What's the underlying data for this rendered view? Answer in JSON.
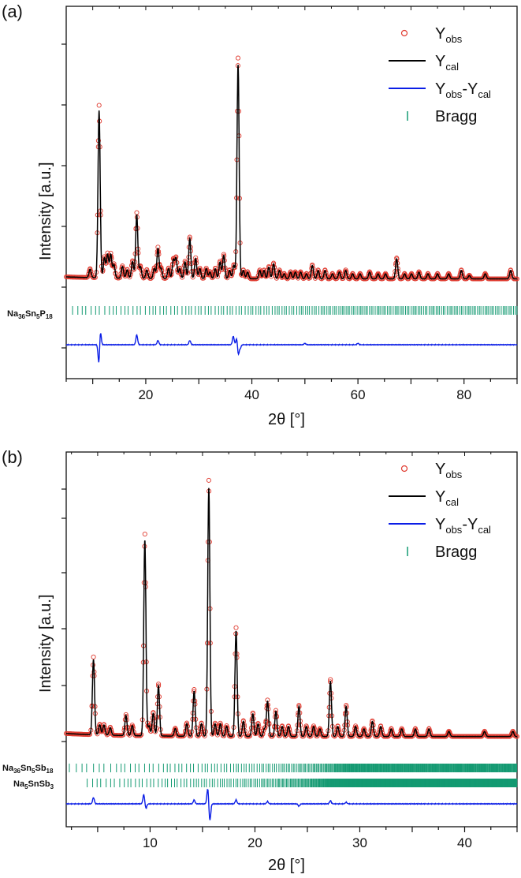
{
  "colors": {
    "obs": "#e03a2f",
    "cal": "#000000",
    "diff": "#0b1ee6",
    "bragg": "#149a72",
    "axis": "#111111"
  },
  "legend": {
    "obs_main": "Y",
    "obs_sub": "obs",
    "cal_main": "Y",
    "cal_sub": "cal",
    "diff_main1": "Y",
    "diff_sub1": "obs",
    "diff_dash": "-",
    "diff_main2": "Y",
    "diff_sub2": "cal",
    "bragg": "Bragg"
  },
  "chart_data": [
    {
      "type": "line",
      "panel_label": "(a)",
      "xlabel": "2θ [°]",
      "ylabel": "Intensity [a.u.]",
      "xlim": [
        5,
        90
      ],
      "xticks": [
        20,
        40,
        60,
        80
      ],
      "y_ticks_labeled": false,
      "legend_position": "top-right",
      "series": [
        {
          "name": "Yobs",
          "marker": "open-circle",
          "color": "#e03a2f"
        },
        {
          "name": "Ycal",
          "marker": "line",
          "color": "#000000"
        },
        {
          "name": "Yobs-Ycal",
          "marker": "line",
          "color": "#0b1ee6"
        },
        {
          "name": "Bragg",
          "marker": "tick",
          "color": "#149a72"
        }
      ],
      "background_level": 0.04,
      "peaks": [
        [
          9.5,
          0.05
        ],
        [
          11.2,
          1.0
        ],
        [
          12.2,
          0.12
        ],
        [
          12.8,
          0.14
        ],
        [
          13.4,
          0.14
        ],
        [
          14.0,
          0.08
        ],
        [
          15.6,
          0.07
        ],
        [
          16.5,
          0.05
        ],
        [
          17.5,
          0.1
        ],
        [
          18.3,
          0.38
        ],
        [
          19.0,
          0.07
        ],
        [
          20.2,
          0.05
        ],
        [
          21.6,
          0.06
        ],
        [
          22.3,
          0.18
        ],
        [
          22.9,
          0.06
        ],
        [
          24.3,
          0.06
        ],
        [
          25.2,
          0.11
        ],
        [
          25.7,
          0.12
        ],
        [
          26.4,
          0.06
        ],
        [
          27.4,
          0.1
        ],
        [
          28.3,
          0.24
        ],
        [
          29.4,
          0.12
        ],
        [
          30.2,
          0.06
        ],
        [
          31.4,
          0.06
        ],
        [
          32.1,
          0.04
        ],
        [
          33.1,
          0.06
        ],
        [
          34.0,
          0.1
        ],
        [
          34.7,
          0.14
        ],
        [
          35.8,
          0.05
        ],
        [
          36.6,
          0.08
        ],
        [
          37.4,
          1.28
        ],
        [
          38.4,
          0.05
        ],
        [
          39.2,
          0.04
        ],
        [
          41.5,
          0.05
        ],
        [
          42.3,
          0.05
        ],
        [
          43.2,
          0.07
        ],
        [
          44.1,
          0.09
        ],
        [
          45.2,
          0.05
        ],
        [
          46.1,
          0.03
        ],
        [
          47.3,
          0.04
        ],
        [
          48.2,
          0.04
        ],
        [
          49.2,
          0.04
        ],
        [
          50.3,
          0.03
        ],
        [
          51.4,
          0.08
        ],
        [
          52.5,
          0.05
        ],
        [
          53.8,
          0.05
        ],
        [
          55.2,
          0.03
        ],
        [
          56.5,
          0.04
        ],
        [
          57.7,
          0.05
        ],
        [
          59.0,
          0.03
        ],
        [
          60.4,
          0.03
        ],
        [
          62.2,
          0.04
        ],
        [
          63.8,
          0.03
        ],
        [
          65.2,
          0.03
        ],
        [
          67.3,
          0.12
        ],
        [
          68.8,
          0.03
        ],
        [
          70.1,
          0.03
        ],
        [
          71.5,
          0.04
        ],
        [
          73.2,
          0.03
        ],
        [
          75.0,
          0.03
        ],
        [
          77.1,
          0.03
        ],
        [
          79.5,
          0.05
        ],
        [
          81.0,
          0.02
        ],
        [
          84.0,
          0.03
        ],
        [
          88.8,
          0.05
        ]
      ],
      "phases": [
        {
          "label_main": "Na",
          "label_sub1": "36",
          "label_mid": "Sn",
          "label_sub2": "5",
          "label_mid2": "P",
          "label_sub3": "18",
          "reflection_start": 6.2,
          "reflection_step_min": 0.35,
          "reflection_step_max": 0.9
        }
      ],
      "difference_spikes": [
        [
          11.2,
          -0.35
        ],
        [
          11.4,
          0.28
        ],
        [
          18.3,
          0.14
        ],
        [
          22.3,
          0.06
        ],
        [
          28.3,
          0.06
        ],
        [
          36.5,
          0.12
        ],
        [
          37.2,
          0.14
        ],
        [
          37.4,
          -0.18
        ],
        [
          37.8,
          -0.05
        ],
        [
          50.0,
          0.02
        ],
        [
          60.0,
          0.02
        ]
      ]
    },
    {
      "type": "line",
      "panel_label": "(b)",
      "xlabel": "2θ [°]",
      "ylabel": "Intensity [a.u.]",
      "xlim": [
        2,
        45
      ],
      "xticks": [
        10,
        20,
        30,
        40
      ],
      "y_ticks_labeled": false,
      "legend_position": "top-right",
      "series": [
        {
          "name": "Yobs",
          "marker": "open-circle",
          "color": "#e03a2f"
        },
        {
          "name": "Ycal",
          "marker": "line",
          "color": "#000000"
        },
        {
          "name": "Yobs-Ycal",
          "marker": "line",
          "color": "#0b1ee6"
        },
        {
          "name": "Bragg",
          "marker": "tick",
          "color": "#149a72"
        }
      ],
      "background_level": 0.02,
      "peaks": [
        [
          4.6,
          0.3
        ],
        [
          5.2,
          0.04
        ],
        [
          5.6,
          0.04
        ],
        [
          6.2,
          0.03
        ],
        [
          7.7,
          0.08
        ],
        [
          8.3,
          0.04
        ],
        [
          9.5,
          0.78
        ],
        [
          9.9,
          0.04
        ],
        [
          10.3,
          0.09
        ],
        [
          10.8,
          0.2
        ],
        [
          12.4,
          0.03
        ],
        [
          13.5,
          0.05
        ],
        [
          14.2,
          0.18
        ],
        [
          14.9,
          0.05
        ],
        [
          15.6,
          0.99
        ],
        [
          16.2,
          0.05
        ],
        [
          16.7,
          0.05
        ],
        [
          17.3,
          0.04
        ],
        [
          18.2,
          0.42
        ],
        [
          18.9,
          0.06
        ],
        [
          19.8,
          0.09
        ],
        [
          20.3,
          0.05
        ],
        [
          20.9,
          0.03
        ],
        [
          21.2,
          0.14
        ],
        [
          22.0,
          0.1
        ],
        [
          22.6,
          0.04
        ],
        [
          23.2,
          0.04
        ],
        [
          24.2,
          0.12
        ],
        [
          24.9,
          0.04
        ],
        [
          25.6,
          0.04
        ],
        [
          26.2,
          0.03
        ],
        [
          27.2,
          0.22
        ],
        [
          27.9,
          0.04
        ],
        [
          28.7,
          0.12
        ],
        [
          29.6,
          0.04
        ],
        [
          30.4,
          0.03
        ],
        [
          31.2,
          0.06
        ],
        [
          32.0,
          0.04
        ],
        [
          33.0,
          0.03
        ],
        [
          34.0,
          0.03
        ],
        [
          35.3,
          0.03
        ],
        [
          36.6,
          0.03
        ],
        [
          38.5,
          0.02
        ],
        [
          41.9,
          0.02
        ],
        [
          44.6,
          0.02
        ]
      ],
      "phases": [
        {
          "label_main": "Na",
          "label_sub1": "36",
          "label_mid": "Sn",
          "label_sub2": "5",
          "label_mid2": "Sb",
          "label_sub3": "18",
          "reflection_start": 2.3,
          "reflection_step_min": 0.06,
          "reflection_step_max": 0.6
        },
        {
          "label_main": "Na",
          "label_sub1": "5",
          "label_mid": "SnSb",
          "label_sub2": "3",
          "label_mid2": "",
          "label_sub3": "",
          "reflection_start": 4.0,
          "reflection_step_min": 0.02,
          "reflection_step_max": 0.5
        }
      ],
      "difference_spikes": [
        [
          4.6,
          0.08
        ],
        [
          9.4,
          0.12
        ],
        [
          9.6,
          -0.06
        ],
        [
          14.2,
          0.05
        ],
        [
          15.5,
          0.2
        ],
        [
          15.7,
          -0.22
        ],
        [
          18.2,
          0.05
        ],
        [
          21.2,
          0.03
        ],
        [
          24.2,
          -0.03
        ],
        [
          27.2,
          0.04
        ],
        [
          28.7,
          0.02
        ]
      ]
    }
  ]
}
